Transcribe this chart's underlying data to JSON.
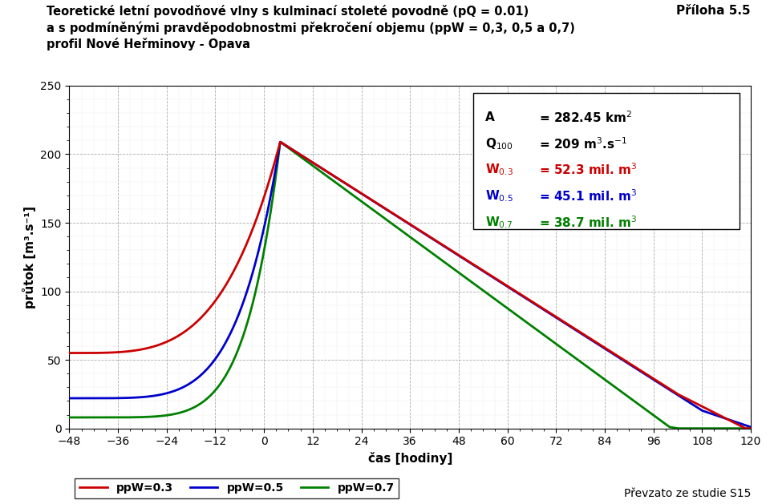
{
  "title_line1": "Teoretické letní povodňové vlny s kulminací stoleté povodně (pQ = 0.01)",
  "title_line2": "a s podmíněnými pravděpodobnostmi překročení objemu (ppW = 0,3, 0,5 a 0,7)",
  "title_line3": "profil Nové Heřminovy - Opava",
  "annex_label": "Příloha 5.5",
  "xlabel": "čas [hodiny]",
  "ylabel": "průtok [m³.s⁻¹]",
  "xlim": [
    -48,
    120
  ],
  "ylim": [
    0,
    250
  ],
  "xticks": [
    -48,
    -36,
    -24,
    -12,
    0,
    12,
    24,
    36,
    48,
    60,
    72,
    84,
    96,
    108,
    120
  ],
  "yticks": [
    0,
    50,
    100,
    150,
    200,
    250
  ],
  "color_03": "#cc0000",
  "color_05": "#0000cc",
  "color_07": "#008000",
  "background_color": "#ffffff",
  "grid_major_color": "#aaaaaa",
  "grid_minor_color": "#cccccc",
  "footnote": "Převzato ze studie S15",
  "legend_labels": [
    "ppW=0.3",
    "ppW=0.5",
    "ppW=0.7"
  ],
  "peak_t": 4.0,
  "peak_q": 209.0,
  "rise_k_03": 0.18,
  "rise_k_05": 0.28,
  "rise_k_07": 0.38,
  "base_03": 55.0,
  "base_05": 22.0,
  "base_07": 8.0,
  "fall_end_t_03": 102.0,
  "fall_end_t_05": 108.0,
  "fall_end_t_07": 100.0,
  "fall_end_q_03": 25.0,
  "fall_end_q_05": 13.0,
  "fall_end_q_07": 1.0
}
